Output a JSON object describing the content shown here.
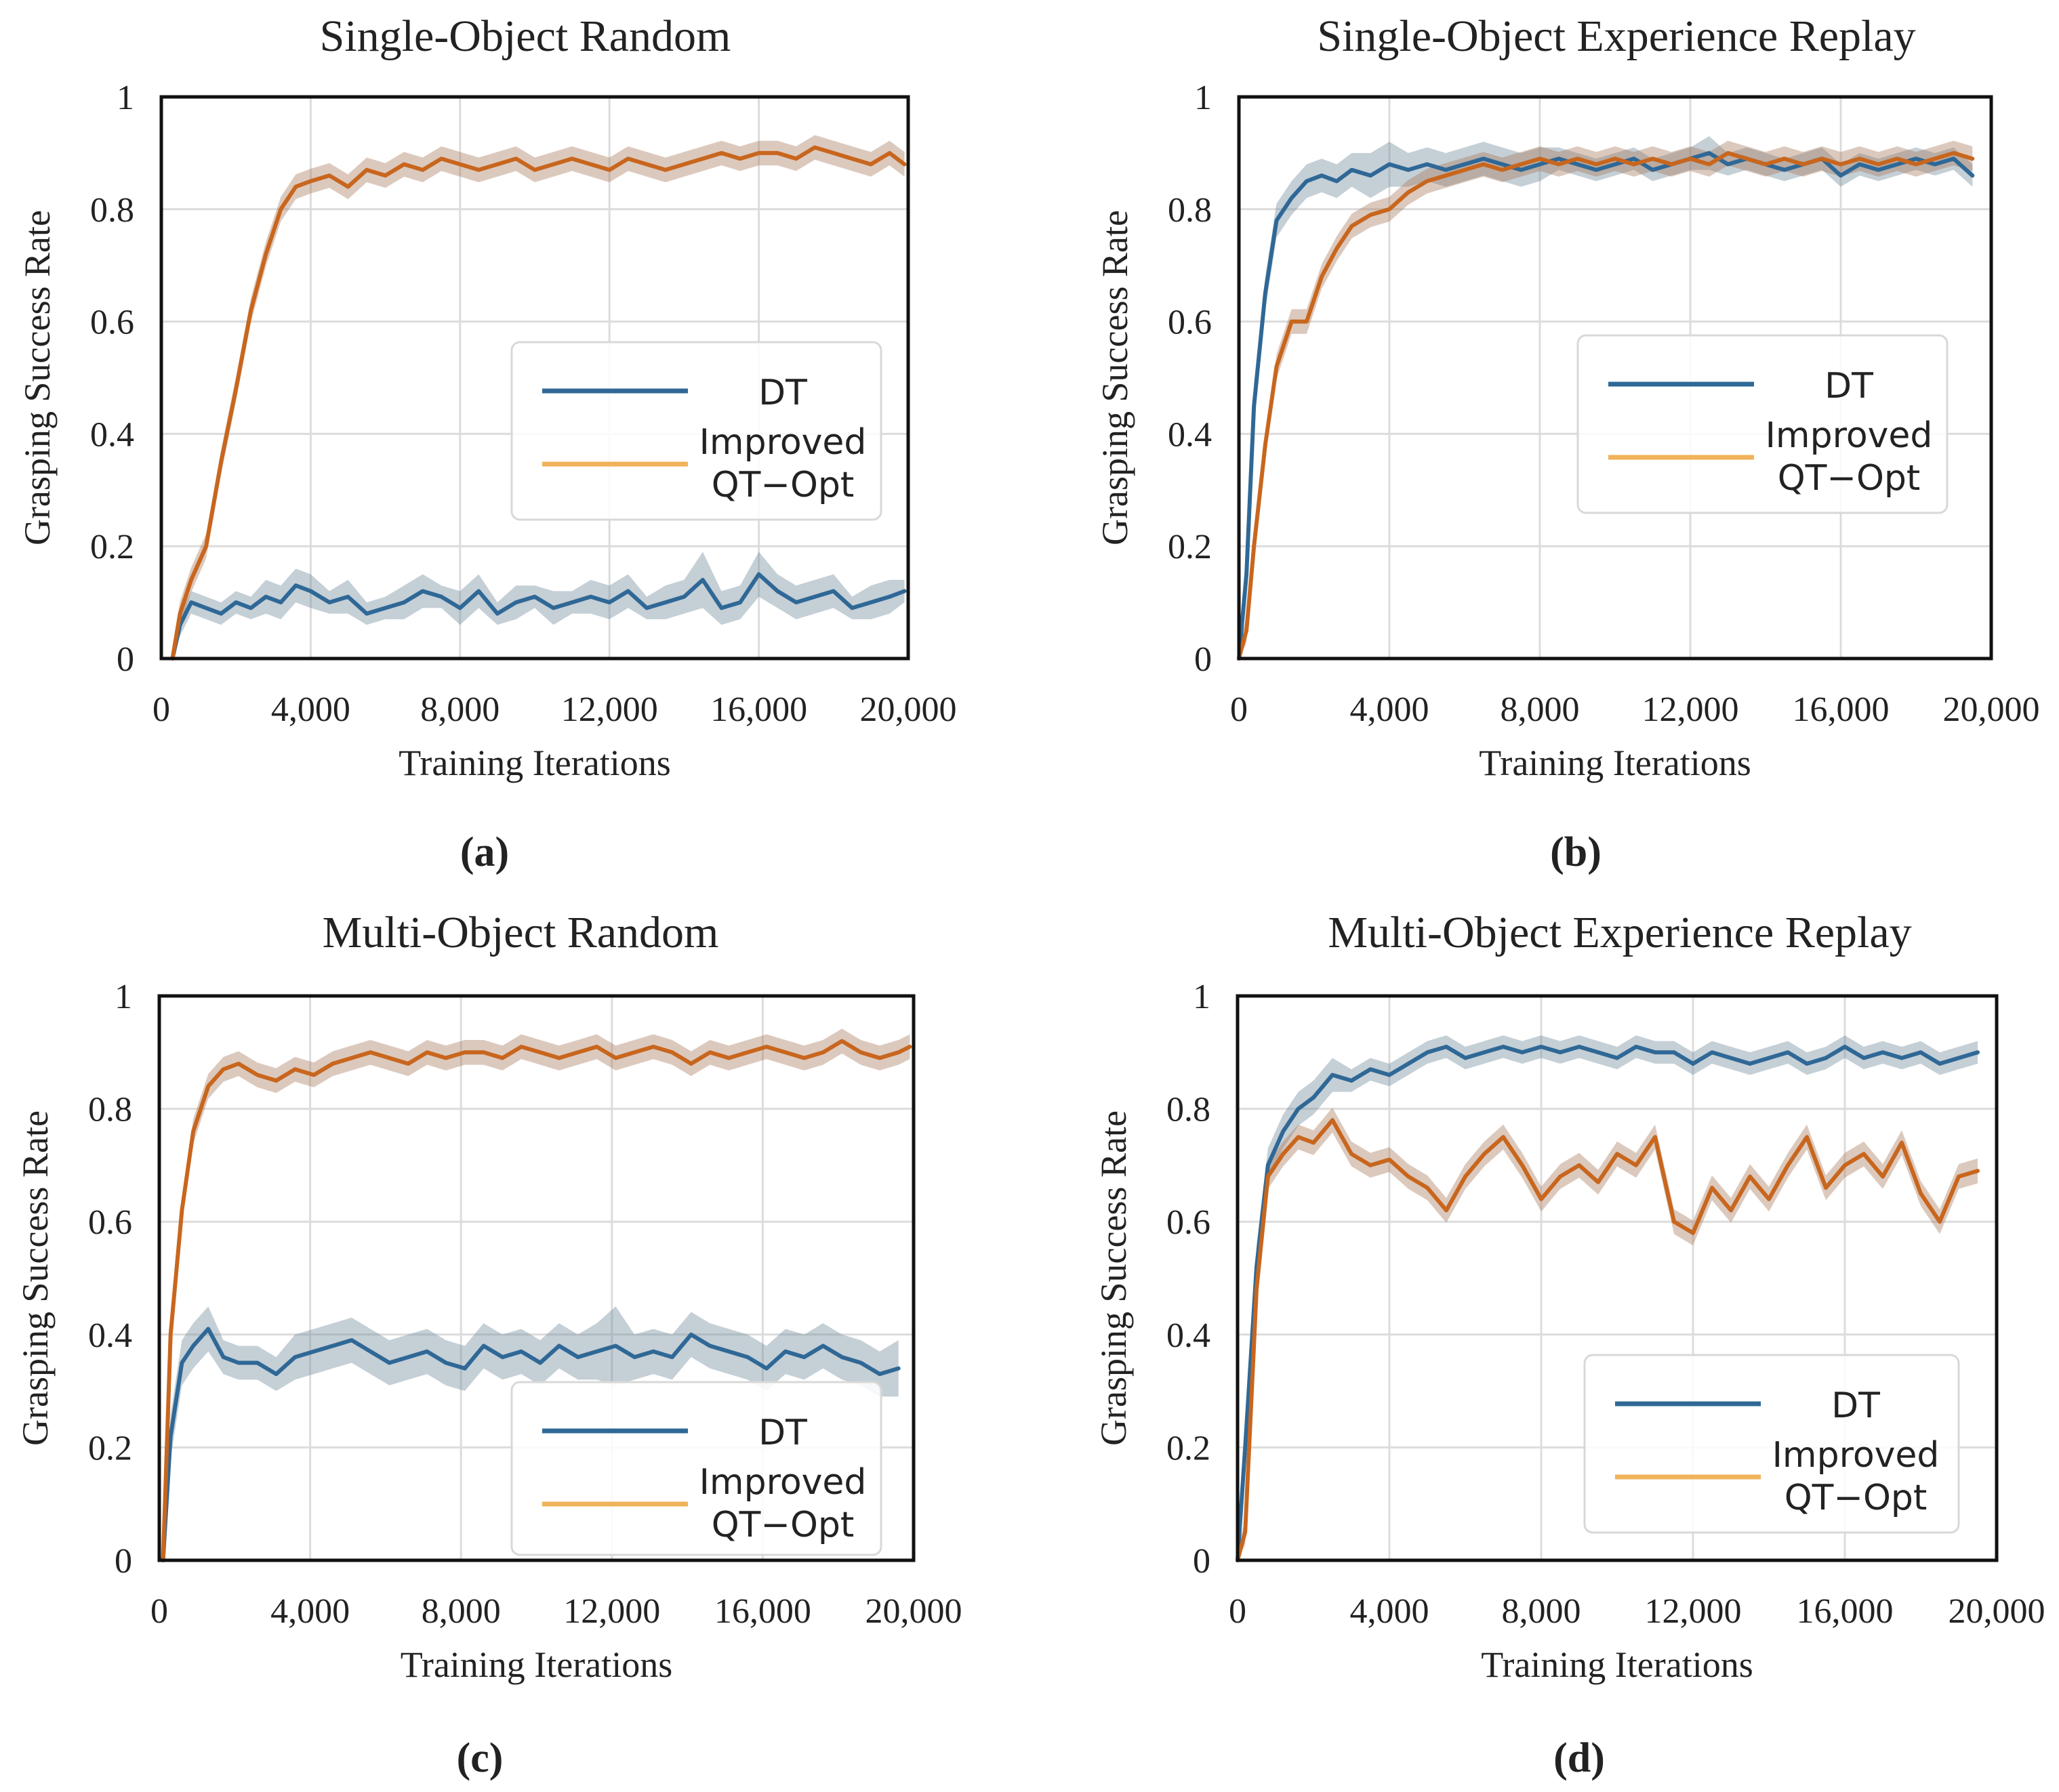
{
  "colors": {
    "dt": "#2f6896",
    "qt_line": "#c8661e",
    "qt_legend": "#f0b25a",
    "dt_band": "#6e8799",
    "qt_band": "#a8775a",
    "grid": "#dcdcdc",
    "axis": "#111111"
  },
  "legend": {
    "dt_label": "DT",
    "qt_label_line1": "Improved",
    "qt_label_line2": "QT−Opt"
  },
  "chart_data": [
    {
      "type": "line",
      "panel_label": "(a)",
      "title": "Single-Object Random",
      "xlabel": "Training Iterations",
      "ylabel": "Grasping Success Rate",
      "xlim": [
        0,
        20000
      ],
      "ylim": [
        0,
        1
      ],
      "xticks": [
        0,
        4000,
        8000,
        12000,
        16000,
        20000
      ],
      "xtick_labels": [
        "0",
        "4,000",
        "8,000",
        "12,000",
        "16,000",
        "20,000"
      ],
      "yticks": [
        0,
        0.2,
        0.4,
        0.6,
        0.8,
        1
      ],
      "ytick_labels": [
        "0",
        "0.2",
        "0.4",
        "0.6",
        "0.8",
        "1"
      ],
      "grid": true,
      "legend_position": "center-right",
      "series": [
        {
          "name": "DT",
          "x": [
            300,
            500,
            800,
            1200,
            1600,
            2000,
            2400,
            2800,
            3200,
            3600,
            4000,
            4500,
            5000,
            5500,
            6000,
            6500,
            7000,
            7500,
            8000,
            8500,
            9000,
            9500,
            10000,
            10500,
            11000,
            11500,
            12000,
            12500,
            13000,
            13500,
            14000,
            14500,
            15000,
            15500,
            16000,
            16500,
            17000,
            17500,
            18000,
            18500,
            19000,
            19500,
            19900
          ],
          "y": [
            0,
            0.06,
            0.1,
            0.09,
            0.08,
            0.1,
            0.09,
            0.11,
            0.1,
            0.13,
            0.12,
            0.1,
            0.11,
            0.08,
            0.09,
            0.1,
            0.12,
            0.11,
            0.09,
            0.12,
            0.08,
            0.1,
            0.11,
            0.09,
            0.1,
            0.11,
            0.1,
            0.12,
            0.09,
            0.1,
            0.11,
            0.14,
            0.09,
            0.1,
            0.15,
            0.12,
            0.1,
            0.11,
            0.12,
            0.09,
            0.1,
            0.11,
            0.12
          ],
          "band": [
            0,
            0.02,
            0.02,
            0.02,
            0.02,
            0.02,
            0.02,
            0.03,
            0.03,
            0.03,
            0.03,
            0.02,
            0.03,
            0.02,
            0.02,
            0.03,
            0.03,
            0.02,
            0.03,
            0.03,
            0.02,
            0.03,
            0.02,
            0.03,
            0.02,
            0.03,
            0.03,
            0.03,
            0.02,
            0.03,
            0.03,
            0.05,
            0.03,
            0.03,
            0.04,
            0.03,
            0.03,
            0.03,
            0.03,
            0.02,
            0.03,
            0.03,
            0.02
          ]
        },
        {
          "name": "Improved QT−Opt",
          "x": [
            300,
            500,
            800,
            1200,
            1600,
            2000,
            2400,
            2800,
            3200,
            3600,
            4000,
            4500,
            5000,
            5500,
            6000,
            6500,
            7000,
            7500,
            8000,
            8500,
            9000,
            9500,
            10000,
            10500,
            11000,
            11500,
            12000,
            12500,
            13000,
            13500,
            14000,
            14500,
            15000,
            15500,
            16000,
            16500,
            17000,
            17500,
            18000,
            18500,
            19000,
            19500,
            19900
          ],
          "y": [
            0,
            0.08,
            0.14,
            0.2,
            0.35,
            0.48,
            0.62,
            0.72,
            0.8,
            0.84,
            0.85,
            0.86,
            0.84,
            0.87,
            0.86,
            0.88,
            0.87,
            0.89,
            0.88,
            0.87,
            0.88,
            0.89,
            0.87,
            0.88,
            0.89,
            0.88,
            0.87,
            0.89,
            0.88,
            0.87,
            0.88,
            0.89,
            0.9,
            0.89,
            0.9,
            0.9,
            0.89,
            0.91,
            0.9,
            0.89,
            0.88,
            0.9,
            0.88
          ]
        }
      ]
    },
    {
      "type": "line",
      "panel_label": "(b)",
      "title": "Single-Object Experience Replay",
      "xlabel": "Training Iterations",
      "ylabel": "Grasping Success Rate",
      "xlim": [
        0,
        20000
      ],
      "ylim": [
        0,
        1
      ],
      "xticks": [
        0,
        4000,
        8000,
        12000,
        16000,
        20000
      ],
      "xtick_labels": [
        "0",
        "4,000",
        "8,000",
        "12,000",
        "16,000",
        "20,000"
      ],
      "yticks": [
        0,
        0.2,
        0.4,
        0.6,
        0.8,
        1
      ],
      "ytick_labels": [
        "0",
        "0.2",
        "0.4",
        "0.6",
        "0.8",
        "1"
      ],
      "grid": true,
      "legend_position": "center-right",
      "series": [
        {
          "name": "DT",
          "x": [
            0,
            200,
            400,
            700,
            1000,
            1400,
            1800,
            2200,
            2600,
            3000,
            3500,
            4000,
            4500,
            5000,
            5500,
            6000,
            6500,
            7000,
            7500,
            8000,
            8500,
            9000,
            9500,
            10000,
            10500,
            11000,
            11500,
            12000,
            12500,
            13000,
            13500,
            14000,
            14500,
            15000,
            15500,
            16000,
            16500,
            17000,
            17500,
            18000,
            18500,
            19000,
            19500
          ],
          "y": [
            0,
            0.15,
            0.45,
            0.65,
            0.78,
            0.82,
            0.85,
            0.86,
            0.85,
            0.87,
            0.86,
            0.88,
            0.87,
            0.88,
            0.87,
            0.88,
            0.89,
            0.88,
            0.87,
            0.88,
            0.89,
            0.88,
            0.87,
            0.88,
            0.89,
            0.87,
            0.88,
            0.89,
            0.9,
            0.88,
            0.89,
            0.88,
            0.87,
            0.88,
            0.89,
            0.86,
            0.88,
            0.87,
            0.88,
            0.89,
            0.88,
            0.89,
            0.86
          ],
          "band": [
            0,
            0.03,
            0.04,
            0.03,
            0.03,
            0.03,
            0.03,
            0.03,
            0.03,
            0.03,
            0.04,
            0.04,
            0.03,
            0.03,
            0.03,
            0.03,
            0.03,
            0.03,
            0.03,
            0.03,
            0.02,
            0.02,
            0.02,
            0.02,
            0.02,
            0.02,
            0.02,
            0.02,
            0.03,
            0.02,
            0.02,
            0.02,
            0.02,
            0.02,
            0.02,
            0.02,
            0.02,
            0.02,
            0.02,
            0.02,
            0.02,
            0.02,
            0.02
          ]
        },
        {
          "name": "Improved QT−Opt",
          "x": [
            0,
            200,
            400,
            700,
            1000,
            1400,
            1800,
            2200,
            2600,
            3000,
            3500,
            4000,
            4500,
            5000,
            5500,
            6000,
            6500,
            7000,
            7500,
            8000,
            8500,
            9000,
            9500,
            10000,
            10500,
            11000,
            11500,
            12000,
            12500,
            13000,
            13500,
            14000,
            14500,
            15000,
            15500,
            16000,
            16500,
            17000,
            17500,
            18000,
            18500,
            19000,
            19500
          ],
          "y": [
            0,
            0.05,
            0.2,
            0.38,
            0.52,
            0.6,
            0.6,
            0.68,
            0.73,
            0.77,
            0.79,
            0.8,
            0.83,
            0.85,
            0.86,
            0.87,
            0.88,
            0.87,
            0.88,
            0.89,
            0.88,
            0.89,
            0.88,
            0.89,
            0.88,
            0.89,
            0.88,
            0.89,
            0.88,
            0.9,
            0.89,
            0.88,
            0.89,
            0.88,
            0.89,
            0.88,
            0.89,
            0.88,
            0.89,
            0.88,
            0.89,
            0.9,
            0.89
          ]
        }
      ]
    },
    {
      "type": "line",
      "panel_label": "(c)",
      "title": "Multi-Object Random",
      "xlabel": "Training Iterations",
      "ylabel": "Grasping Success Rate",
      "xlim": [
        0,
        20000
      ],
      "ylim": [
        0,
        1
      ],
      "xticks": [
        0,
        4000,
        8000,
        12000,
        16000,
        20000
      ],
      "xtick_labels": [
        "0",
        "4,000",
        "8,000",
        "12,000",
        "16,000",
        "20,000"
      ],
      "yticks": [
        0,
        0.2,
        0.4,
        0.6,
        0.8,
        1
      ],
      "ytick_labels": [
        "0",
        "0.2",
        "0.4",
        "0.6",
        "0.8",
        "1"
      ],
      "grid": true,
      "legend_position": "bottom-right",
      "series": [
        {
          "name": "DT",
          "x": [
            100,
            300,
            600,
            900,
            1300,
            1700,
            2100,
            2600,
            3100,
            3600,
            4100,
            4600,
            5100,
            5600,
            6100,
            6600,
            7100,
            7600,
            8100,
            8600,
            9100,
            9600,
            10100,
            10600,
            11100,
            11600,
            12100,
            12600,
            13100,
            13600,
            14100,
            14600,
            15100,
            15600,
            16100,
            16600,
            17100,
            17600,
            18100,
            18600,
            19100,
            19600
          ],
          "y": [
            0,
            0.22,
            0.35,
            0.38,
            0.41,
            0.36,
            0.35,
            0.35,
            0.33,
            0.36,
            0.37,
            0.38,
            0.39,
            0.37,
            0.35,
            0.36,
            0.37,
            0.35,
            0.34,
            0.38,
            0.36,
            0.37,
            0.35,
            0.38,
            0.36,
            0.37,
            0.38,
            0.36,
            0.37,
            0.36,
            0.4,
            0.38,
            0.37,
            0.36,
            0.34,
            0.37,
            0.36,
            0.38,
            0.36,
            0.35,
            0.33,
            0.34
          ],
          "band": [
            0,
            0.04,
            0.04,
            0.04,
            0.04,
            0.03,
            0.03,
            0.03,
            0.03,
            0.04,
            0.04,
            0.04,
            0.04,
            0.04,
            0.04,
            0.04,
            0.04,
            0.04,
            0.04,
            0.04,
            0.04,
            0.04,
            0.04,
            0.04,
            0.04,
            0.05,
            0.07,
            0.04,
            0.04,
            0.04,
            0.04,
            0.04,
            0.04,
            0.04,
            0.04,
            0.04,
            0.04,
            0.04,
            0.04,
            0.04,
            0.04,
            0.05
          ]
        },
        {
          "name": "Improved QT−Opt",
          "x": [
            100,
            300,
            600,
            900,
            1300,
            1700,
            2100,
            2600,
            3100,
            3600,
            4100,
            4600,
            5100,
            5600,
            6100,
            6600,
            7100,
            7600,
            8100,
            8600,
            9100,
            9600,
            10100,
            10600,
            11100,
            11600,
            12100,
            12600,
            13100,
            13600,
            14100,
            14600,
            15100,
            15600,
            16100,
            16600,
            17100,
            17600,
            18100,
            18600,
            19100,
            19600,
            19900
          ],
          "y": [
            0,
            0.4,
            0.62,
            0.76,
            0.84,
            0.87,
            0.88,
            0.86,
            0.85,
            0.87,
            0.86,
            0.88,
            0.89,
            0.9,
            0.89,
            0.88,
            0.9,
            0.89,
            0.9,
            0.9,
            0.89,
            0.91,
            0.9,
            0.89,
            0.9,
            0.91,
            0.89,
            0.9,
            0.91,
            0.9,
            0.88,
            0.9,
            0.89,
            0.9,
            0.91,
            0.9,
            0.89,
            0.9,
            0.92,
            0.9,
            0.89,
            0.9,
            0.91
          ]
        }
      ]
    },
    {
      "type": "line",
      "panel_label": "(d)",
      "title": "Multi-Object Experience Replay",
      "xlabel": "Training Iterations",
      "ylabel": "Grasping Success Rate",
      "xlim": [
        0,
        20000
      ],
      "ylim": [
        0,
        1
      ],
      "xticks": [
        0,
        4000,
        8000,
        12000,
        16000,
        20000
      ],
      "xtick_labels": [
        "0",
        "4,000",
        "8,000",
        "12,000",
        "16,000",
        "20,000"
      ],
      "yticks": [
        0,
        0.2,
        0.4,
        0.6,
        0.8,
        1
      ],
      "ytick_labels": [
        "0",
        "0.2",
        "0.4",
        "0.6",
        "0.8",
        "1"
      ],
      "grid": true,
      "legend_position": "bottom-right",
      "series": [
        {
          "name": "DT",
          "x": [
            0,
            200,
            500,
            800,
            1200,
            1600,
            2000,
            2500,
            3000,
            3500,
            4000,
            4500,
            5000,
            5500,
            6000,
            6500,
            7000,
            7500,
            8000,
            8500,
            9000,
            9500,
            10000,
            10500,
            11000,
            11500,
            12000,
            12500,
            13000,
            13500,
            14000,
            14500,
            15000,
            15500,
            16000,
            16500,
            17000,
            17500,
            18000,
            18500,
            19000,
            19500
          ],
          "y": [
            0,
            0.2,
            0.52,
            0.7,
            0.76,
            0.8,
            0.82,
            0.86,
            0.85,
            0.87,
            0.86,
            0.88,
            0.9,
            0.91,
            0.89,
            0.9,
            0.91,
            0.9,
            0.91,
            0.9,
            0.91,
            0.9,
            0.89,
            0.91,
            0.9,
            0.9,
            0.88,
            0.9,
            0.89,
            0.88,
            0.89,
            0.9,
            0.88,
            0.89,
            0.91,
            0.89,
            0.9,
            0.89,
            0.9,
            0.88,
            0.89,
            0.9
          ],
          "band": [
            0,
            0.03,
            0.04,
            0.03,
            0.03,
            0.03,
            0.03,
            0.03,
            0.02,
            0.02,
            0.02,
            0.02,
            0.02,
            0.02,
            0.02,
            0.02,
            0.02,
            0.02,
            0.02,
            0.02,
            0.02,
            0.02,
            0.02,
            0.02,
            0.02,
            0.02,
            0.02,
            0.02,
            0.02,
            0.02,
            0.02,
            0.02,
            0.02,
            0.02,
            0.02,
            0.02,
            0.02,
            0.02,
            0.02,
            0.02,
            0.02,
            0.02
          ]
        },
        {
          "name": "Improved QT−Opt",
          "x": [
            0,
            200,
            500,
            800,
            1200,
            1600,
            2000,
            2500,
            3000,
            3500,
            4000,
            4500,
            5000,
            5500,
            6000,
            6500,
            7000,
            7500,
            8000,
            8500,
            9000,
            9500,
            10000,
            10500,
            11000,
            11500,
            12000,
            12500,
            13000,
            13500,
            14000,
            14500,
            15000,
            15500,
            16000,
            16500,
            17000,
            17500,
            18000,
            18500,
            19000,
            19500
          ],
          "y": [
            0,
            0.05,
            0.48,
            0.68,
            0.72,
            0.75,
            0.74,
            0.78,
            0.72,
            0.7,
            0.71,
            0.68,
            0.66,
            0.62,
            0.68,
            0.72,
            0.75,
            0.7,
            0.64,
            0.68,
            0.7,
            0.67,
            0.72,
            0.7,
            0.75,
            0.6,
            0.58,
            0.66,
            0.62,
            0.68,
            0.64,
            0.7,
            0.75,
            0.66,
            0.7,
            0.72,
            0.68,
            0.74,
            0.65,
            0.6,
            0.68,
            0.69
          ]
        }
      ]
    }
  ]
}
